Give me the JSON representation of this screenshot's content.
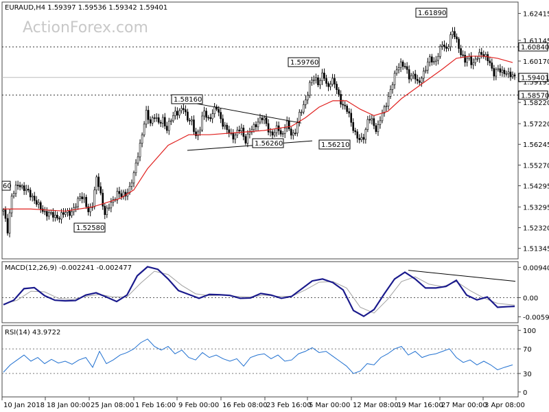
{
  "chart_data": [
    {
      "type": "candlestick",
      "symbol_info": "EURAUD,H4  1.59397 1.59536 1.59342 1.59401",
      "watermark": "ActionForex.com",
      "y_ticks": [
        "1.62415",
        "1.61145",
        "1.60170",
        "1.59195",
        "1.58220",
        "1.57220",
        "1.56245",
        "1.55270",
        "1.54295",
        "1.53295",
        "1.52320",
        "1.51345"
      ],
      "ylim": [
        1.5085,
        1.6295
      ],
      "last_price": "1.59401",
      "price_tags": [
        {
          "label": "1.60840",
          "value": 1.6084,
          "style": "dotted"
        },
        {
          "label": "1.58570",
          "value": 1.5857,
          "style": "dotted"
        }
      ],
      "annotations": [
        {
          "label": "1.52580",
          "value": 1.5258
        },
        {
          "label": "1.58160",
          "value": 1.5816
        },
        {
          "label": "1.56260",
          "value": 1.5626
        },
        {
          "label": "1.59760",
          "value": 1.5976
        },
        {
          "label": "1.56210",
          "value": 1.5621
        },
        {
          "label": "1.61890",
          "value": 1.6189
        }
      ],
      "left_partial_label": "60",
      "close_path": [
        [
          0,
          1.531
        ],
        [
          6,
          1.522
        ],
        [
          12,
          1.538
        ],
        [
          22,
          1.544
        ],
        [
          32,
          1.541
        ],
        [
          42,
          1.538
        ],
        [
          52,
          1.533
        ],
        [
          62,
          1.53
        ],
        [
          72,
          1.529
        ],
        [
          82,
          1.528
        ],
        [
          92,
          1.531
        ],
        [
          100,
          1.53
        ],
        [
          106,
          1.534
        ],
        [
          112,
          1.539
        ],
        [
          118,
          1.536
        ],
        [
          124,
          1.53
        ],
        [
          130,
          1.535
        ],
        [
          136,
          1.547
        ],
        [
          142,
          1.538
        ],
        [
          148,
          1.53
        ],
        [
          154,
          1.533
        ],
        [
          160,
          1.536
        ],
        [
          166,
          1.54
        ],
        [
          172,
          1.538
        ],
        [
          178,
          1.539
        ],
        [
          184,
          1.542
        ],
        [
          190,
          1.548
        ],
        [
          196,
          1.558
        ],
        [
          202,
          1.567
        ],
        [
          208,
          1.577
        ],
        [
          214,
          1.573
        ],
        [
          220,
          1.576
        ],
        [
          226,
          1.572
        ],
        [
          232,
          1.575
        ],
        [
          238,
          1.569
        ],
        [
          244,
          1.574
        ],
        [
          250,
          1.578
        ],
        [
          256,
          1.577
        ],
        [
          262,
          1.58
        ],
        [
          268,
          1.575
        ],
        [
          274,
          1.573
        ],
        [
          280,
          1.566
        ],
        [
          286,
          1.57
        ],
        [
          292,
          1.578
        ],
        [
          298,
          1.574
        ],
        [
          304,
          1.577
        ],
        [
          310,
          1.58
        ],
        [
          316,
          1.575
        ],
        [
          322,
          1.571
        ],
        [
          328,
          1.568
        ],
        [
          334,
          1.566
        ],
        [
          340,
          1.568
        ],
        [
          346,
          1.57
        ],
        [
          352,
          1.564
        ],
        [
          358,
          1.568
        ],
        [
          364,
          1.57
        ],
        [
          370,
          1.573
        ],
        [
          376,
          1.575
        ],
        [
          382,
          1.573
        ],
        [
          388,
          1.568
        ],
        [
          394,
          1.567
        ],
        [
          400,
          1.571
        ],
        [
          406,
          1.566
        ],
        [
          412,
          1.573
        ],
        [
          418,
          1.568
        ],
        [
          424,
          1.567
        ],
        [
          430,
          1.575
        ],
        [
          436,
          1.58
        ],
        [
          442,
          1.585
        ],
        [
          448,
          1.592
        ],
        [
          454,
          1.594
        ],
        [
          460,
          1.591
        ],
        [
          466,
          1.596
        ],
        [
          472,
          1.589
        ],
        [
          478,
          1.593
        ],
        [
          484,
          1.59
        ],
        [
          490,
          1.584
        ],
        [
          496,
          1.58
        ],
        [
          502,
          1.578
        ],
        [
          508,
          1.572
        ],
        [
          514,
          1.566
        ],
        [
          520,
          1.564
        ],
        [
          526,
          1.567
        ],
        [
          532,
          1.575
        ],
        [
          538,
          1.573
        ],
        [
          544,
          1.569
        ],
        [
          550,
          1.575
        ],
        [
          556,
          1.58
        ],
        [
          562,
          1.586
        ],
        [
          568,
          1.592
        ],
        [
          574,
          1.599
        ],
        [
          580,
          1.601
        ],
        [
          586,
          1.598
        ],
        [
          592,
          1.594
        ],
        [
          598,
          1.596
        ],
        [
          604,
          1.59
        ],
        [
          610,
          1.595
        ],
        [
          616,
          1.599
        ],
        [
          622,
          1.603
        ],
        [
          628,
          1.601
        ],
        [
          634,
          1.605
        ],
        [
          640,
          1.61
        ],
        [
          646,
          1.607
        ],
        [
          652,
          1.614
        ],
        [
          656,
          1.615
        ],
        [
          660,
          1.612
        ],
        [
          666,
          1.606
        ],
        [
          672,
          1.601
        ],
        [
          678,
          1.604
        ],
        [
          684,
          1.6
        ],
        [
          690,
          1.603
        ],
        [
          696,
          1.606
        ],
        [
          702,
          1.604
        ],
        [
          708,
          1.601
        ],
        [
          714,
          1.596
        ],
        [
          720,
          1.598
        ],
        [
          726,
          1.596
        ],
        [
          732,
          1.597
        ],
        [
          738,
          1.595
        ],
        [
          744,
          1.594
        ]
      ],
      "ma_path": [
        [
          0,
          1.532
        ],
        [
          40,
          1.532
        ],
        [
          90,
          1.531
        ],
        [
          130,
          1.533
        ],
        [
          170,
          1.537
        ],
        [
          190,
          1.541
        ],
        [
          210,
          1.551
        ],
        [
          240,
          1.562
        ],
        [
          270,
          1.567
        ],
        [
          300,
          1.567
        ],
        [
          340,
          1.568
        ],
        [
          380,
          1.569
        ],
        [
          420,
          1.571
        ],
        [
          440,
          1.575
        ],
        [
          460,
          1.58
        ],
        [
          480,
          1.583
        ],
        [
          500,
          1.583
        ],
        [
          520,
          1.579
        ],
        [
          540,
          1.576
        ],
        [
          560,
          1.578
        ],
        [
          580,
          1.584
        ],
        [
          610,
          1.591
        ],
        [
          640,
          1.598
        ],
        [
          660,
          1.603
        ],
        [
          680,
          1.604
        ],
        [
          700,
          1.604
        ],
        [
          720,
          1.603
        ],
        [
          742,
          1.601
        ]
      ],
      "trendlines": [
        {
          "from": [
            268,
            1.5596
          ],
          "to": [
            450,
            1.5641
          ]
        },
        {
          "from": [
            282,
            1.5816
          ],
          "to": [
            434,
            1.5725
          ]
        }
      ]
    },
    {
      "type": "line",
      "title": "MACD(12,26,9) -0.002241 -0.002477",
      "y_ticks": [
        "0.009407",
        "0.00",
        "-0.00594"
      ],
      "ylim": [
        -0.0078,
        0.0112
      ],
      "macd_path": [
        [
          0,
          -0.0022
        ],
        [
          15,
          -0.0008
        ],
        [
          30,
          0.0028
        ],
        [
          45,
          0.0031
        ],
        [
          60,
          0.0006
        ],
        [
          75,
          -0.0008
        ],
        [
          90,
          -0.001
        ],
        [
          105,
          -0.0009
        ],
        [
          120,
          0.0008
        ],
        [
          135,
          0.0015
        ],
        [
          150,
          0.0002
        ],
        [
          165,
          -0.0012
        ],
        [
          180,
          0.0008
        ],
        [
          195,
          0.0068
        ],
        [
          210,
          0.0096
        ],
        [
          225,
          0.0088
        ],
        [
          240,
          0.0058
        ],
        [
          255,
          0.0022
        ],
        [
          270,
          0.001
        ],
        [
          285,
          -0.0002
        ],
        [
          300,
          0.001
        ],
        [
          315,
          0.0009
        ],
        [
          330,
          0.0007
        ],
        [
          345,
          -0.0002
        ],
        [
          360,
          -0.0001
        ],
        [
          375,
          0.0013
        ],
        [
          390,
          0.0008
        ],
        [
          405,
          -0.0002
        ],
        [
          420,
          0.0004
        ],
        [
          435,
          0.0028
        ],
        [
          450,
          0.0052
        ],
        [
          465,
          0.0058
        ],
        [
          480,
          0.0047
        ],
        [
          495,
          0.0024
        ],
        [
          510,
          -0.004
        ],
        [
          525,
          -0.0058
        ],
        [
          540,
          -0.0037
        ],
        [
          555,
          0.0012
        ],
        [
          570,
          0.0058
        ],
        [
          585,
          0.0079
        ],
        [
          600,
          0.0058
        ],
        [
          615,
          0.003
        ],
        [
          630,
          0.003
        ],
        [
          645,
          0.0035
        ],
        [
          660,
          0.0054
        ],
        [
          675,
          0.0008
        ],
        [
          690,
          -0.0007
        ],
        [
          705,
          0.0002
        ],
        [
          720,
          -0.003
        ],
        [
          735,
          -0.0028
        ],
        [
          745,
          -0.0027
        ]
      ],
      "signal_path": [
        [
          0,
          -0.002
        ],
        [
          20,
          -0.0008
        ],
        [
          40,
          0.002
        ],
        [
          60,
          0.0018
        ],
        [
          80,
          -0.0002
        ],
        [
          100,
          -0.0006
        ],
        [
          120,
          0.0004
        ],
        [
          140,
          0.001
        ],
        [
          160,
          0.0002
        ],
        [
          180,
          0.0002
        ],
        [
          200,
          0.0045
        ],
        [
          220,
          0.0082
        ],
        [
          240,
          0.0072
        ],
        [
          260,
          0.0038
        ],
        [
          280,
          0.0012
        ],
        [
          300,
          0.0006
        ],
        [
          320,
          0.0008
        ],
        [
          340,
          0.0004
        ],
        [
          360,
          0.0002
        ],
        [
          380,
          0.0008
        ],
        [
          400,
          0.0004
        ],
        [
          420,
          0.0004
        ],
        [
          440,
          0.0024
        ],
        [
          460,
          0.0048
        ],
        [
          480,
          0.005
        ],
        [
          500,
          0.003
        ],
        [
          520,
          -0.003
        ],
        [
          540,
          -0.0048
        ],
        [
          560,
          -0.0005
        ],
        [
          580,
          0.005
        ],
        [
          600,
          0.0065
        ],
        [
          620,
          0.0042
        ],
        [
          640,
          0.0034
        ],
        [
          660,
          0.005
        ],
        [
          680,
          0.0022
        ],
        [
          700,
          -0.0001
        ],
        [
          720,
          -0.0018
        ],
        [
          745,
          -0.0023
        ]
      ],
      "trendline": {
        "from": [
          590,
          0.0085
        ],
        "to": [
          746,
          0.0051
        ]
      }
    },
    {
      "type": "line",
      "title": "RSI(14) 43.9722",
      "y_ticks": [
        "100",
        "70",
        "30",
        "0"
      ],
      "ylim": [
        -8,
        108
      ],
      "levels": [
        70,
        30
      ],
      "rsi_path": [
        [
          0,
          32
        ],
        [
          10,
          44
        ],
        [
          20,
          52
        ],
        [
          30,
          60
        ],
        [
          40,
          50
        ],
        [
          50,
          56
        ],
        [
          60,
          46
        ],
        [
          70,
          53
        ],
        [
          80,
          47
        ],
        [
          90,
          50
        ],
        [
          100,
          45
        ],
        [
          110,
          52
        ],
        [
          120,
          56
        ],
        [
          130,
          40
        ],
        [
          140,
          66
        ],
        [
          150,
          46
        ],
        [
          160,
          52
        ],
        [
          170,
          60
        ],
        [
          180,
          64
        ],
        [
          190,
          70
        ],
        [
          200,
          80
        ],
        [
          210,
          86
        ],
        [
          220,
          74
        ],
        [
          230,
          68
        ],
        [
          240,
          74
        ],
        [
          250,
          62
        ],
        [
          260,
          68
        ],
        [
          270,
          56
        ],
        [
          280,
          52
        ],
        [
          290,
          64
        ],
        [
          300,
          56
        ],
        [
          310,
          60
        ],
        [
          320,
          54
        ],
        [
          330,
          50
        ],
        [
          340,
          54
        ],
        [
          350,
          42
        ],
        [
          360,
          56
        ],
        [
          370,
          60
        ],
        [
          380,
          62
        ],
        [
          390,
          54
        ],
        [
          400,
          60
        ],
        [
          410,
          50
        ],
        [
          420,
          52
        ],
        [
          430,
          62
        ],
        [
          440,
          66
        ],
        [
          450,
          72
        ],
        [
          460,
          64
        ],
        [
          470,
          66
        ],
        [
          480,
          58
        ],
        [
          490,
          50
        ],
        [
          500,
          42
        ],
        [
          510,
          30
        ],
        [
          520,
          34
        ],
        [
          530,
          46
        ],
        [
          540,
          44
        ],
        [
          550,
          56
        ],
        [
          560,
          62
        ],
        [
          570,
          70
        ],
        [
          580,
          74
        ],
        [
          590,
          60
        ],
        [
          600,
          66
        ],
        [
          610,
          56
        ],
        [
          620,
          60
        ],
        [
          630,
          62
        ],
        [
          640,
          66
        ],
        [
          650,
          70
        ],
        [
          660,
          56
        ],
        [
          670,
          48
        ],
        [
          680,
          52
        ],
        [
          690,
          44
        ],
        [
          700,
          50
        ],
        [
          710,
          44
        ],
        [
          720,
          36
        ],
        [
          730,
          40
        ],
        [
          742,
          44
        ]
      ]
    }
  ],
  "x_axis": {
    "labels": [
      "10 Jan 2018",
      "18 Jan 00:00",
      "25 Jan 08:00",
      "1 Feb 16:00",
      "9 Feb 00:00",
      "16 Feb 08:00",
      "23 Feb 16:00",
      "5 Mar 00:00",
      "12 Mar 08:00",
      "19 Mar 16:00",
      "27 Mar 00:00",
      "3 Apr 08:00"
    ]
  }
}
